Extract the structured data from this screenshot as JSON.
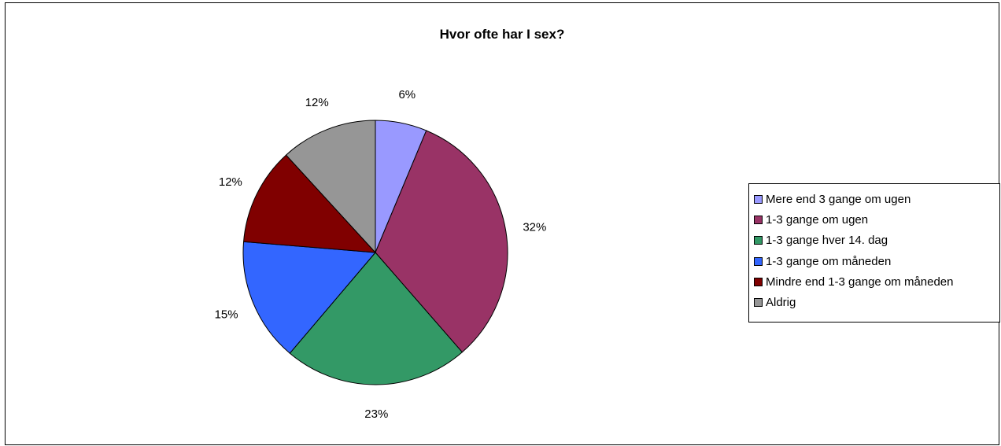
{
  "chart_data": {
    "type": "pie",
    "title": "Hvor ofte har I sex?",
    "categories": [
      "Mere end 3 gange om ugen",
      "1-3 gange om ugen",
      "1-3 gange hver 14. dag",
      "1-3 gange om måneden",
      "Mindre end 1-3 gange om måneden",
      "Aldrig"
    ],
    "values": [
      6.3,
      32.3,
      22.6,
      15.1,
      11.9,
      11.8
    ],
    "labels": [
      "6%",
      "32%",
      "23%",
      "15%",
      "12%",
      "12%"
    ],
    "colors": [
      "#9999ff",
      "#993366",
      "#339966",
      "#3366ff",
      "#800000",
      "#969696"
    ],
    "legend_position": "right"
  }
}
